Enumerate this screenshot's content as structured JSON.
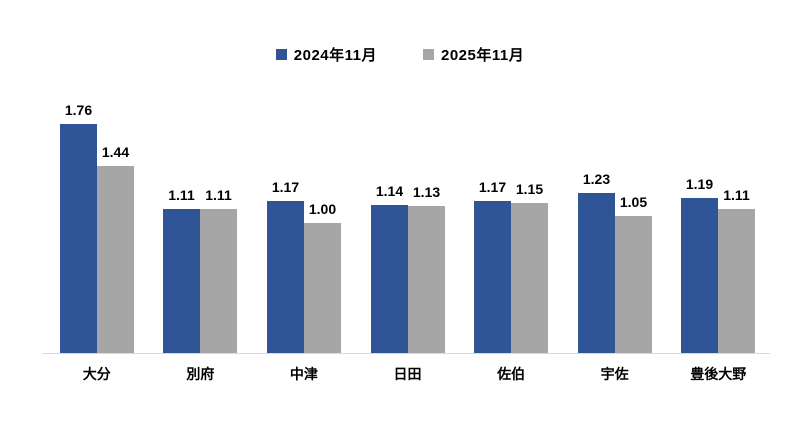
{
  "chart_data": {
    "type": "bar",
    "title": "",
    "categories": [
      "大分",
      "別府",
      "中津",
      "日田",
      "佐伯",
      "宇佐",
      "豊後大野"
    ],
    "series": [
      {
        "name": "2024年11月",
        "color": "#2F5597",
        "values": [
          1.76,
          1.11,
          1.17,
          1.14,
          1.17,
          1.23,
          1.19
        ]
      },
      {
        "name": "2025年11月",
        "color": "#A6A6A6",
        "values": [
          1.44,
          1.11,
          1.0,
          1.13,
          1.15,
          1.05,
          1.11
        ]
      }
    ],
    "value_label_format": "0.00",
    "ylim": [
      0,
      1.9
    ],
    "grid": false,
    "legend_position": "top",
    "axis_line_color": "#d9d9d9",
    "value_labels_shown": true
  }
}
